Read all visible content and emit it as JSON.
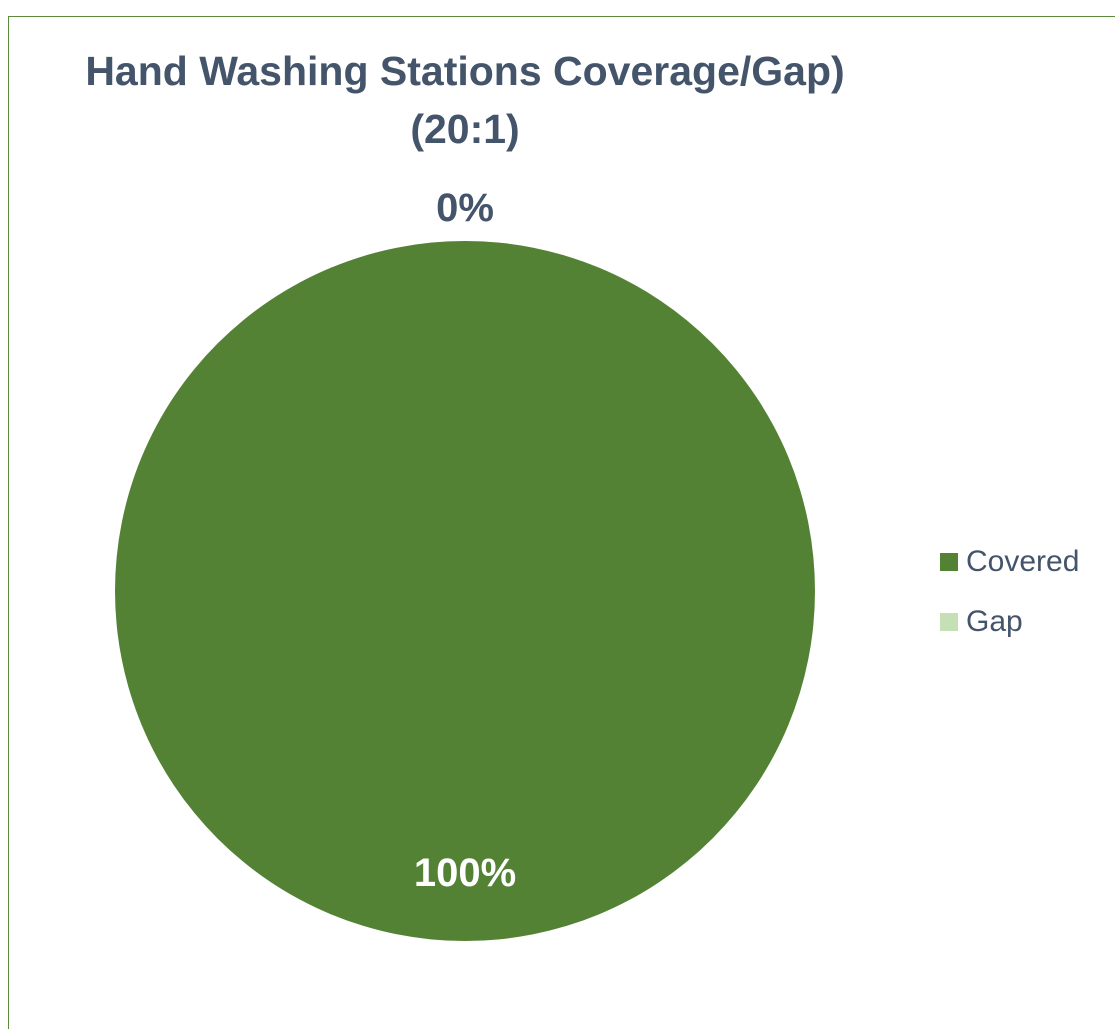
{
  "chart_data": {
    "type": "pie",
    "title_lines": [
      "Hand Washing Stations Coverage/Gap)",
      "(20:1)"
    ],
    "categories": [
      "Covered",
      "Gap"
    ],
    "values": [
      100,
      0
    ],
    "data_labels": [
      "100%",
      "0%"
    ],
    "colors": [
      "#548235",
      "#c5e0b4"
    ],
    "legend_position": "right"
  }
}
